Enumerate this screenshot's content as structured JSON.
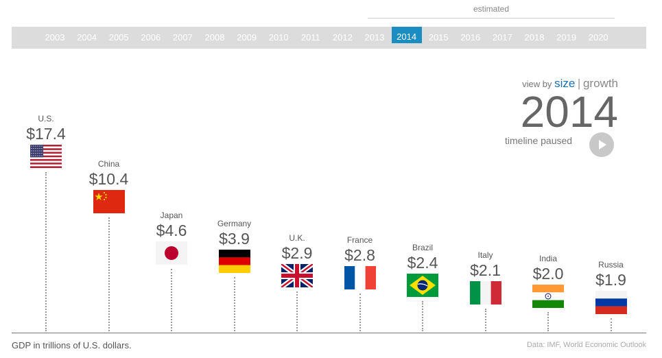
{
  "header": {
    "estimated_label": "estimated"
  },
  "timeline": {
    "years": [
      "2003",
      "2004",
      "2005",
      "2006",
      "2007",
      "2008",
      "2009",
      "2010",
      "2011",
      "2012",
      "2013",
      "2014",
      "2015",
      "2016",
      "2017",
      "2018",
      "2019",
      "2020"
    ],
    "selected": "2014",
    "estimated_from": "2015",
    "bar_color": "#dcdcdc",
    "selected_color": "#1a8ec2"
  },
  "controls": {
    "view_by_label": "view by",
    "size_label": "size",
    "separator": "|",
    "growth_label": "growth",
    "current_year": "2014",
    "status": "timeline paused",
    "play_icon": "play-icon"
  },
  "chart_data": {
    "type": "bar",
    "year": "2014",
    "categories": [
      "U.S.",
      "China",
      "Japan",
      "Germany",
      "U.K.",
      "France",
      "Brazil",
      "Italy",
      "India",
      "Russia"
    ],
    "values": [
      17.4,
      10.4,
      4.6,
      3.9,
      2.9,
      2.8,
      2.4,
      2.1,
      2.0,
      1.9
    ],
    "value_labels": [
      "$17.4",
      "$10.4",
      "$4.6",
      "$3.9",
      "$2.9",
      "$2.8",
      "$2.4",
      "$2.1",
      "$2.0",
      "$1.9"
    ],
    "flags": [
      "us-flag-icon",
      "china-flag-icon",
      "japan-flag-icon",
      "germany-flag-icon",
      "uk-flag-icon",
      "france-flag-icon",
      "brazil-flag-icon",
      "italy-flag-icon",
      "india-flag-icon",
      "russia-flag-icon"
    ],
    "title": "",
    "xlabel": "",
    "ylabel": "GDP in trillions of U.S. dollars."
  },
  "footer": {
    "note": "GDP in trillions of U.S. dollars.",
    "source": "Data: IMF, World Economic Outlook"
  }
}
